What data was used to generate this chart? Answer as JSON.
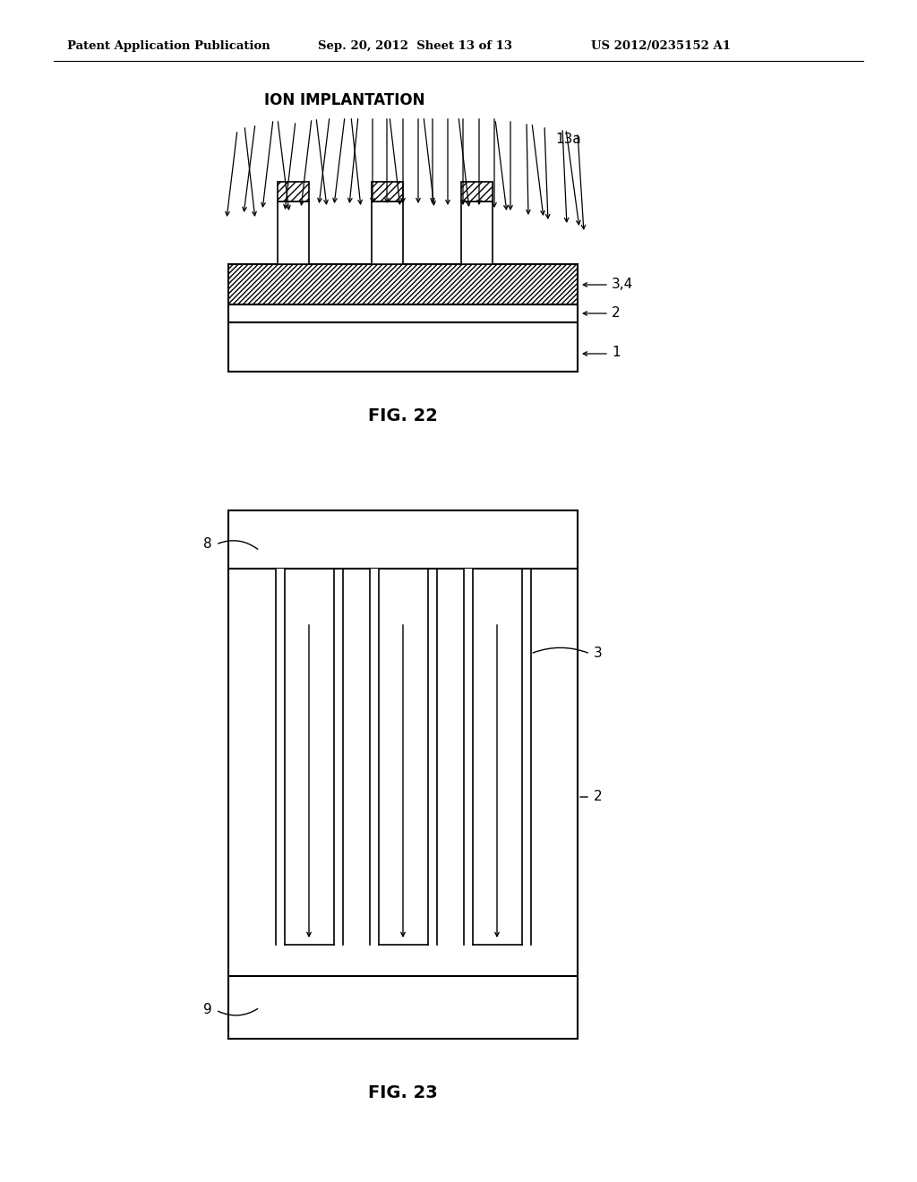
{
  "bg_color": "#ffffff",
  "header_text": "Patent Application Publication",
  "header_date": "Sep. 20, 2012  Sheet 13 of 13",
  "header_patent": "US 2012/0235152 A1",
  "fig22_title": "ION IMPLANTATION",
  "fig22_label": "FIG. 22",
  "fig22_label_3_4": "3,4",
  "fig22_label_2": "2",
  "fig22_label_1": "1",
  "fig22_label_13a": "13a",
  "fig23_label": "FIG. 23",
  "fig23_label_8": "8",
  "fig23_label_3": "3",
  "fig23_label_2": "2",
  "fig23_label_9": "9"
}
